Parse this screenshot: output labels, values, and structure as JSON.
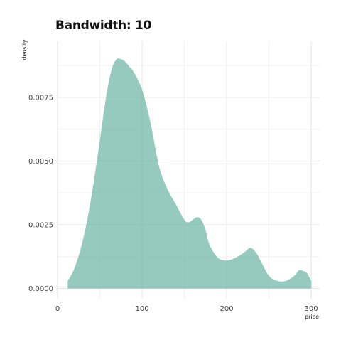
{
  "chart_data": {
    "type": "area",
    "title": "Bandwidth: 10",
    "xlabel": "price",
    "ylabel": "density",
    "xlim": [
      0,
      310
    ],
    "ylim": [
      -0.0004,
      0.0097
    ],
    "x_ticks": [
      0,
      100,
      200,
      300
    ],
    "x_tick_labels": [
      "0",
      "100",
      "200",
      "300"
    ],
    "y_ticks": [
      0.0,
      0.0025,
      0.005,
      0.0075
    ],
    "y_tick_labels": [
      "0.0000",
      "0.0025",
      "0.0050",
      "0.0075"
    ],
    "grid": true,
    "fill_color": "#69b3a2",
    "fill_opacity": 0.7,
    "series": [
      {
        "x": [
          12,
          20,
          30,
          40,
          50,
          55,
          60,
          65,
          70,
          75,
          80,
          85,
          90,
          100,
          110,
          120,
          130,
          140,
          150,
          155,
          160,
          165,
          170,
          175,
          180,
          190,
          200,
          210,
          220,
          228,
          235,
          240,
          250,
          260,
          270,
          280,
          285,
          290,
          295,
          300
        ],
        "y": [
          0.0003,
          0.0008,
          0.0019,
          0.0036,
          0.0058,
          0.007,
          0.008,
          0.0087,
          0.009,
          0.009,
          0.0089,
          0.0087,
          0.0085,
          0.0078,
          0.0065,
          0.0048,
          0.0039,
          0.0033,
          0.0027,
          0.0026,
          0.0027,
          0.0028,
          0.0027,
          0.0023,
          0.0017,
          0.0012,
          0.0011,
          0.0012,
          0.0014,
          0.0016,
          0.0014,
          0.0011,
          0.0005,
          0.0003,
          0.0003,
          0.0005,
          0.0007,
          0.0007,
          0.0006,
          0.0003
        ]
      }
    ]
  }
}
